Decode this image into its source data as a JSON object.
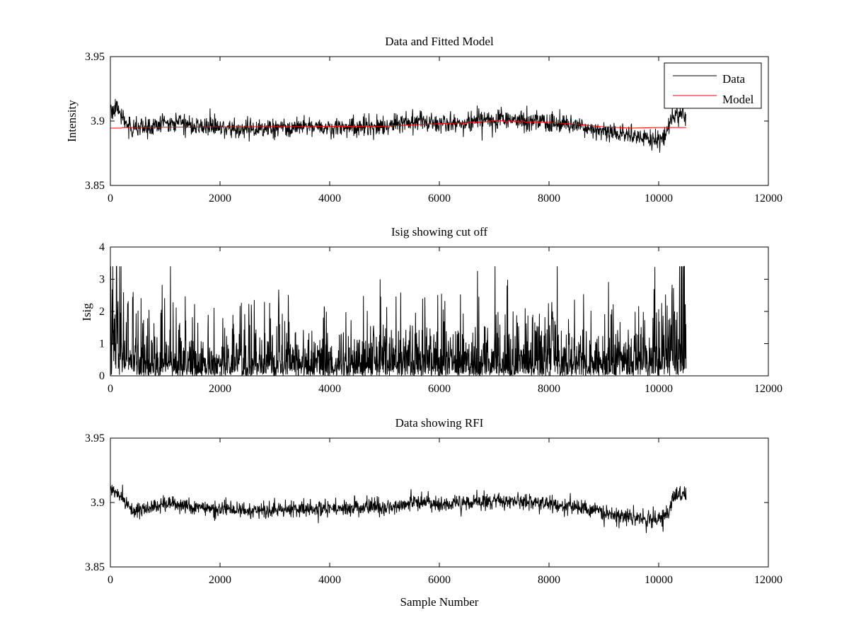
{
  "chart_data": [
    {
      "type": "line",
      "title": "Data and Fitted Model",
      "xlabel": "",
      "ylabel": "Intensity",
      "xlim": [
        0,
        12000
      ],
      "ylim": [
        3.85,
        3.95
      ],
      "xticks": [
        0,
        2000,
        4000,
        6000,
        8000,
        10000,
        12000
      ],
      "xtick_labels": [
        "0",
        "2000",
        "4000",
        "6000",
        "8000",
        "10000",
        "12000"
      ],
      "yticks": [
        3.85,
        3.9,
        3.95
      ],
      "ytick_labels": [
        "3.85",
        "3.9",
        "3.95"
      ],
      "legend": {
        "position": "top-right",
        "entries": [
          "Data",
          "Model"
        ]
      },
      "series": [
        {
          "name": "Data",
          "color": "#000000",
          "style": "noisy",
          "noise": 0.0065,
          "x": [
            0,
            150,
            300,
            400,
            700,
            1000,
            1200,
            1500,
            2000,
            2500,
            3000,
            3500,
            4000,
            4500,
            5000,
            5500,
            6000,
            6500,
            7000,
            7500,
            8000,
            8500,
            9000,
            9500,
            10000,
            10100,
            10200,
            10300,
            10500
          ],
          "y": [
            3.91,
            3.908,
            3.898,
            3.893,
            3.895,
            3.899,
            3.9,
            3.896,
            3.895,
            3.894,
            3.894,
            3.895,
            3.895,
            3.896,
            3.896,
            3.9,
            3.898,
            3.899,
            3.902,
            3.9,
            3.899,
            3.897,
            3.892,
            3.889,
            3.886,
            3.887,
            3.897,
            3.906,
            3.905
          ]
        },
        {
          "name": "Model",
          "color": "#ff0000",
          "style": "smooth",
          "x": [
            0,
            200,
            220,
            2000,
            5000,
            6000,
            6500,
            7000,
            7500,
            8000,
            8500,
            9000,
            9500,
            10000,
            10500
          ],
          "y": [
            3.8945,
            3.8945,
            3.895,
            3.8955,
            3.896,
            3.898,
            3.8985,
            3.9005,
            3.8995,
            3.899,
            3.8975,
            3.8955,
            3.8945,
            3.895,
            3.895
          ]
        }
      ]
    },
    {
      "type": "line",
      "title": "Isig showing cut off",
      "xlabel": "",
      "ylabel": "Isig",
      "xlim": [
        0,
        12000
      ],
      "ylim": [
        0,
        4
      ],
      "xticks": [
        0,
        2000,
        4000,
        6000,
        8000,
        10000,
        12000
      ],
      "xtick_labels": [
        "0",
        "2000",
        "4000",
        "6000",
        "8000",
        "10000",
        "12000"
      ],
      "yticks": [
        0,
        1,
        2,
        3,
        4
      ],
      "ytick_labels": [
        "0",
        "1",
        "2",
        "3",
        "4"
      ],
      "series": [
        {
          "name": "Isig",
          "color": "#000000",
          "style": "spikes",
          "x": [
            0,
            250,
            500,
            1000,
            2000,
            3000,
            4000,
            5000,
            5400,
            6000,
            7000,
            8000,
            9000,
            9500,
            10000,
            10300,
            10500
          ],
          "y": [
            1.6,
            1.2,
            0.8,
            0.7,
            0.6,
            0.65,
            0.6,
            0.65,
            0.75,
            0.7,
            0.75,
            0.8,
            0.75,
            0.9,
            0.9,
            1.5,
            1.6
          ],
          "max": 3.4
        }
      ]
    },
    {
      "type": "line",
      "title": "Data showing RFI",
      "xlabel": "Sample Number",
      "ylabel": "",
      "xlim": [
        0,
        12000
      ],
      "ylim": [
        3.85,
        3.95
      ],
      "xticks": [
        0,
        2000,
        4000,
        6000,
        8000,
        10000,
        12000
      ],
      "xtick_labels": [
        "0",
        "2000",
        "4000",
        "6000",
        "8000",
        "10000",
        "12000"
      ],
      "yticks": [
        3.85,
        3.9,
        3.95
      ],
      "ytick_labels": [
        "3.85",
        "3.9",
        "3.95"
      ],
      "series": [
        {
          "name": "Data",
          "color": "#000000",
          "style": "noisy",
          "noise": 0.0055,
          "x": [
            0,
            150,
            300,
            400,
            700,
            1000,
            1200,
            1500,
            2000,
            2500,
            3000,
            3500,
            4000,
            4500,
            5000,
            5500,
            6000,
            6500,
            7000,
            7500,
            8000,
            8500,
            9000,
            9500,
            10000,
            10100,
            10200,
            10300,
            10500
          ],
          "y": [
            3.91,
            3.908,
            3.898,
            3.893,
            3.895,
            3.899,
            3.9,
            3.896,
            3.895,
            3.894,
            3.894,
            3.895,
            3.895,
            3.896,
            3.896,
            3.9,
            3.898,
            3.899,
            3.902,
            3.9,
            3.899,
            3.897,
            3.892,
            3.889,
            3.886,
            3.887,
            3.897,
            3.906,
            3.905
          ]
        }
      ]
    }
  ]
}
